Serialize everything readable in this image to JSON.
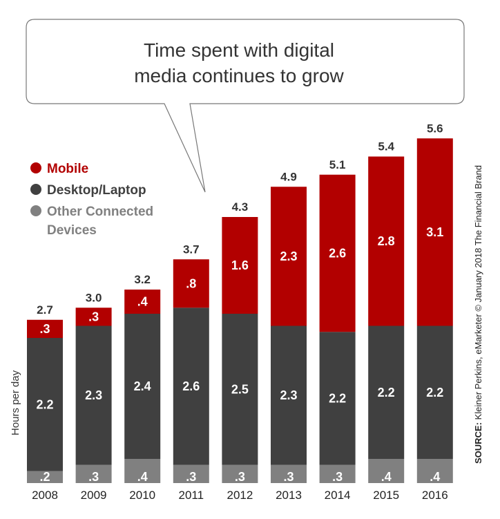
{
  "chart_data": {
    "type": "bar",
    "stacked": true,
    "title": "Time spent with digital media continues to grow",
    "title_lines": [
      "Time spent with digital",
      "media continues to grow"
    ],
    "ylabel": "Hours per day",
    "xlabel": "",
    "ylim": [
      0,
      5.6
    ],
    "categories": [
      "2008",
      "2009",
      "2010",
      "2011",
      "2012",
      "2013",
      "2014",
      "2015",
      "2016"
    ],
    "totals": [
      2.7,
      3.0,
      3.2,
      3.7,
      4.3,
      4.9,
      5.1,
      5.4,
      5.6
    ],
    "total_labels": [
      "2.7",
      "3.0",
      "3.2",
      "3.7",
      "4.3",
      "4.9",
      "5.1",
      "5.4",
      "5.6"
    ],
    "series": [
      {
        "name": "Other Connected Devices",
        "color": "#808080",
        "values": [
          0.2,
          0.3,
          0.4,
          0.3,
          0.3,
          0.3,
          0.3,
          0.4,
          0.4
        ],
        "labels": [
          ".2",
          ".3",
          ".4",
          ".3",
          ".3",
          ".3",
          ".3",
          ".4",
          ".4"
        ]
      },
      {
        "name": "Desktop/Laptop",
        "color": "#404040",
        "values": [
          2.2,
          2.3,
          2.4,
          2.6,
          2.5,
          2.3,
          2.2,
          2.2,
          2.2
        ],
        "labels": [
          "2.2",
          "2.3",
          "2.4",
          "2.6",
          "2.5",
          "2.3",
          "2.2",
          "2.2",
          "2.2"
        ]
      },
      {
        "name": "Mobile",
        "color": "#b20000",
        "values": [
          0.3,
          0.3,
          0.4,
          0.8,
          1.6,
          2.3,
          2.6,
          2.8,
          3.1
        ],
        "labels": [
          ".3",
          ".3",
          ".4",
          ".8",
          "1.6",
          "2.3",
          "2.6",
          "2.8",
          "3.1"
        ]
      }
    ],
    "legend": {
      "placement": "top-left",
      "entries": [
        {
          "label": "Mobile",
          "color": "#b20000"
        },
        {
          "label": "Desktop/Laptop",
          "color": "#404040"
        },
        {
          "label": "Other Connected Devices",
          "color": "#808080",
          "lines": [
            "Other Connected",
            "Devices"
          ]
        }
      ]
    },
    "source_bold": "SOURCE:",
    "source": "Kleiner Perkins, eMarketer © January 2018 The Financial Brand",
    "grid": false
  }
}
